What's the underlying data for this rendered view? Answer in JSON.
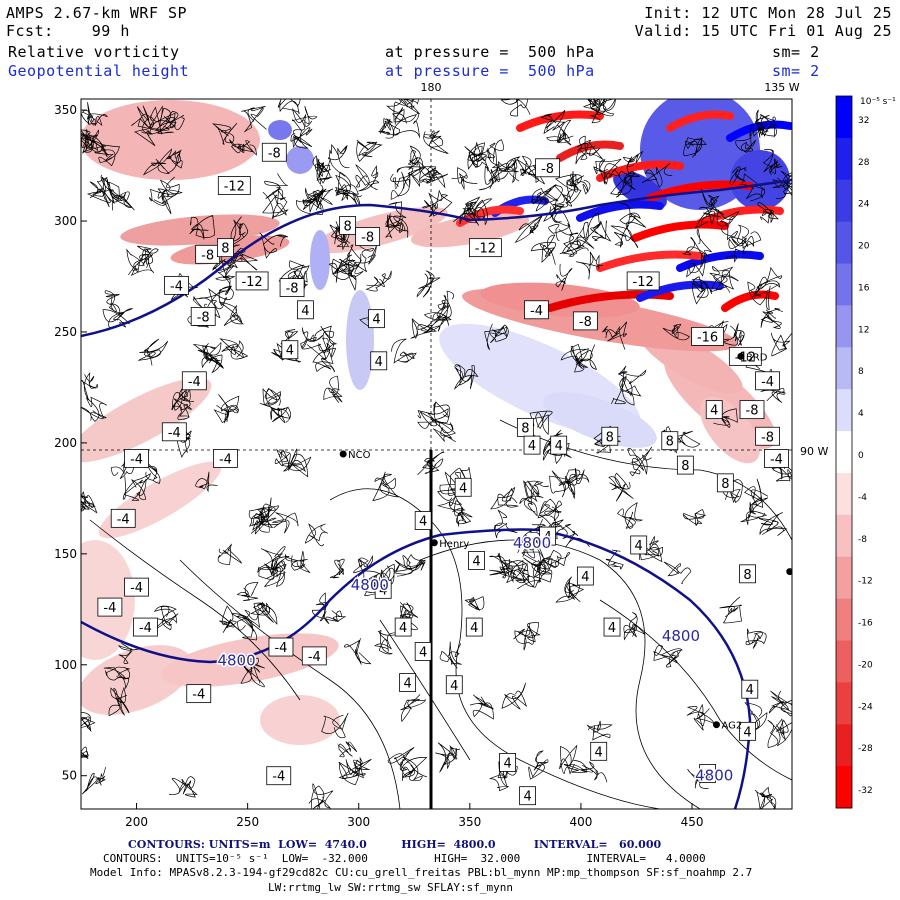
{
  "header": {
    "model": "AMPS 2.67-km WRF SP",
    "fcst": "Fcst:    99 h",
    "field1": "Relative vorticity",
    "field2": "Geopotential height",
    "pressure1": "at pressure =  500 hPa",
    "pressure2": "at pressure =  500 hPa",
    "init": "Init: 12 UTC Mon 28 Jul 25",
    "valid": "Valid: 15 UTC Fri 01 Aug 25",
    "sm1": "sm= 2",
    "sm2": "sm= 2"
  },
  "map": {
    "meridian_top": "180",
    "meridian_right_top": "135 W",
    "meridian_right": "90 W",
    "stations": [
      {
        "name": "NCO",
        "x": 293,
        "y": 195
      },
      {
        "name": "Henry",
        "x": 334,
        "y": 155
      },
      {
        "name": "BRD",
        "x": 472,
        "y": 239
      },
      {
        "name": "AG2",
        "x": 461,
        "y": 73
      },
      {
        "name": "",
        "x": 494,
        "y": 142
      }
    ],
    "x_ticks": [
      "200",
      "250",
      "300",
      "350",
      "400",
      "450"
    ],
    "y_ticks": [
      "50",
      "100",
      "150",
      "200",
      "250",
      "300",
      "350"
    ],
    "height_labels": [
      {
        "text": "4800",
        "x": 378,
        "y": 155
      },
      {
        "text": "4800",
        "x": 305,
        "y": 136
      },
      {
        "text": "4800",
        "x": 245,
        "y": 102
      },
      {
        "text": "4800",
        "x": 445,
        "y": 113
      },
      {
        "text": "4800",
        "x": 460,
        "y": 50
      }
    ],
    "vort_labels": [
      {
        "t": "-8",
        "x": 262,
        "y": 331
      },
      {
        "t": "-12",
        "x": 244,
        "y": 316
      },
      {
        "t": "-8",
        "x": 385,
        "y": 324
      },
      {
        "t": "8",
        "x": 295,
        "y": 298
      },
      {
        "t": "-8",
        "x": 304,
        "y": 293
      },
      {
        "t": "-12",
        "x": 357,
        "y": 288
      },
      {
        "t": "-8",
        "x": 232,
        "y": 285
      },
      {
        "t": "8",
        "x": 240,
        "y": 288
      },
      {
        "t": "-4",
        "x": 218,
        "y": 271
      },
      {
        "t": "-12",
        "x": 252,
        "y": 273
      },
      {
        "t": "-8",
        "x": 270,
        "y": 270
      },
      {
        "t": "-8",
        "x": 230,
        "y": 257
      },
      {
        "t": "4",
        "x": 276,
        "y": 260
      },
      {
        "t": "4",
        "x": 308,
        "y": 256
      },
      {
        "t": "-4",
        "x": 380,
        "y": 260
      },
      {
        "t": "-8",
        "x": 402,
        "y": 255
      },
      {
        "t": "-12",
        "x": 428,
        "y": 273
      },
      {
        "t": "-16",
        "x": 457,
        "y": 248
      },
      {
        "t": "-12",
        "x": 474,
        "y": 239
      },
      {
        "t": "4",
        "x": 269,
        "y": 242
      },
      {
        "t": "4",
        "x": 309,
        "y": 237
      },
      {
        "t": "-4",
        "x": 226,
        "y": 228
      },
      {
        "t": "-4",
        "x": 484,
        "y": 228
      },
      {
        "t": "4",
        "x": 460,
        "y": 215
      },
      {
        "t": "-8",
        "x": 477,
        "y": 215
      },
      {
        "t": "8",
        "x": 375,
        "y": 207
      },
      {
        "t": "-4",
        "x": 217,
        "y": 205
      },
      {
        "t": "8",
        "x": 413,
        "y": 203
      },
      {
        "t": "8",
        "x": 440,
        "y": 201
      },
      {
        "t": "-8",
        "x": 484,
        "y": 203
      },
      {
        "t": "4",
        "x": 378,
        "y": 199
      },
      {
        "t": "4",
        "x": 390,
        "y": 199
      },
      {
        "t": "8",
        "x": 447,
        "y": 190
      },
      {
        "t": "-4",
        "x": 200,
        "y": 193
      },
      {
        "t": "-4",
        "x": 240,
        "y": 193
      },
      {
        "t": "-4",
        "x": 488,
        "y": 193
      },
      {
        "t": "8",
        "x": 465,
        "y": 182
      },
      {
        "t": "4",
        "x": 347,
        "y": 180
      },
      {
        "t": "-4",
        "x": 194,
        "y": 166
      },
      {
        "t": "4",
        "x": 329,
        "y": 165
      },
      {
        "t": "4",
        "x": 385,
        "y": 158
      },
      {
        "t": "4",
        "x": 426,
        "y": 154
      },
      {
        "t": "4",
        "x": 353,
        "y": 147
      },
      {
        "t": "4",
        "x": 402,
        "y": 140
      },
      {
        "t": "8",
        "x": 475,
        "y": 141
      },
      {
        "t": "-4",
        "x": 200,
        "y": 135
      },
      {
        "t": "4",
        "x": 311,
        "y": 134
      },
      {
        "t": "-4",
        "x": 188,
        "y": 126
      },
      {
        "t": "-4",
        "x": 204,
        "y": 117
      },
      {
        "t": "4",
        "x": 320,
        "y": 117
      },
      {
        "t": "4",
        "x": 352,
        "y": 117
      },
      {
        "t": "4",
        "x": 414,
        "y": 117
      },
      {
        "t": "4",
        "x": 329,
        "y": 106
      },
      {
        "t": "-4",
        "x": 265,
        "y": 108
      },
      {
        "t": "-4",
        "x": 280,
        "y": 104
      },
      {
        "t": "4",
        "x": 322,
        "y": 92
      },
      {
        "t": "4",
        "x": 343,
        "y": 91
      },
      {
        "t": "-4",
        "x": 228,
        "y": 87
      },
      {
        "t": "4",
        "x": 408,
        "y": 61
      },
      {
        "t": "4",
        "x": 367,
        "y": 56
      },
      {
        "t": "4",
        "x": 457,
        "y": 51
      },
      {
        "t": "4",
        "x": 476,
        "y": 89
      },
      {
        "t": "4",
        "x": 475,
        "y": 70
      },
      {
        "t": "-4",
        "x": 264,
        "y": 50
      },
      {
        "t": "4",
        "x": 376,
        "y": 41
      }
    ]
  },
  "colorbar": {
    "unit": "10⁻⁵ s⁻¹",
    "labels": [
      "32",
      "28",
      "24",
      "20",
      "16",
      "12",
      "8",
      "4",
      "0",
      "-4",
      "-8",
      "-12",
      "-16",
      "-20",
      "-24",
      "-28",
      "-32"
    ],
    "colors": [
      "#0000ff",
      "#2020ee",
      "#3c3ce6",
      "#5555e8",
      "#7373ec",
      "#9696f0",
      "#b9b9f6",
      "#dcdcfc",
      "#ffffff",
      "#fce0e0",
      "#f8c0c0",
      "#f4a0a0",
      "#f08080",
      "#ee6060",
      "#ec4040",
      "#ea2020",
      "#ff0000"
    ]
  },
  "footer": {
    "line1": "CONTOURS: UNITS=m  LOW=  4740.0         HIGH=  4800.0          INTERVAL=   60.000",
    "line2": "CONTOURS:  UNITS=10⁻⁵ s⁻¹  LOW=  -32.000          HIGH=  32.000          INTERVAL=   4.0000",
    "line3": "Model Info: MPASv8.2.3-194-gf29cd82c CU:cu_grell_freitas PBL:bl_mynn MP:mp_thompson SF:sf_noahmp 2.7",
    "line4": "LW:rrtmg_lw SW:rrtmg_sw SFLAY:sf_mynn"
  }
}
